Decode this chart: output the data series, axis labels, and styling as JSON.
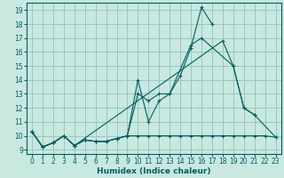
{
  "xlabel": "Humidex (Indice chaleur)",
  "xlim": [
    -0.5,
    23.5
  ],
  "ylim": [
    8.7,
    19.5
  ],
  "yticks": [
    9,
    10,
    11,
    12,
    13,
    14,
    15,
    16,
    17,
    18,
    19
  ],
  "xticks": [
    0,
    1,
    2,
    3,
    4,
    5,
    6,
    7,
    8,
    9,
    10,
    11,
    12,
    13,
    14,
    15,
    16,
    17,
    18,
    19,
    20,
    21,
    22,
    23
  ],
  "bg_color": "#c8e8e0",
  "grid_color": "#98c8c0",
  "line_color": "#006060",
  "lines": [
    {
      "x": [
        0,
        1,
        2,
        3,
        4,
        5,
        6,
        7,
        8,
        9,
        10,
        11,
        12,
        13,
        14,
        15,
        16,
        17,
        18,
        19,
        20,
        21,
        22,
        23
      ],
      "y": [
        10.3,
        9.2,
        9.5,
        10.0,
        9.3,
        9.7,
        9.6,
        9.6,
        9.8,
        10.0,
        10.0,
        10.0,
        10.0,
        10.0,
        10.0,
        10.0,
        10.0,
        10.0,
        10.0,
        10.0,
        10.0,
        10.0,
        10.0,
        9.9
      ]
    },
    {
      "x": [
        0,
        1,
        2,
        3,
        4,
        5,
        6,
        7,
        8,
        9,
        10,
        11,
        12,
        13,
        14,
        15,
        16,
        17
      ],
      "y": [
        10.3,
        9.2,
        9.5,
        10.0,
        9.3,
        9.7,
        9.6,
        9.6,
        9.8,
        10.0,
        14.0,
        11.0,
        12.5,
        13.0,
        14.3,
        16.3,
        19.2,
        18.0
      ]
    },
    {
      "x": [
        0,
        1,
        2,
        3,
        4,
        5,
        6,
        7,
        8,
        9,
        10,
        11,
        12,
        13,
        15,
        16,
        19,
        20,
        21
      ],
      "y": [
        10.3,
        9.2,
        9.5,
        10.0,
        9.3,
        9.7,
        9.6,
        9.6,
        9.8,
        10.0,
        13.0,
        12.5,
        13.0,
        13.0,
        16.5,
        17.0,
        15.0,
        12.0,
        11.5
      ]
    },
    {
      "x": [
        0,
        1,
        2,
        3,
        4,
        18,
        19,
        20,
        21,
        23
      ],
      "y": [
        10.3,
        9.2,
        9.5,
        10.0,
        9.3,
        16.8,
        15.0,
        12.0,
        11.5,
        9.9
      ]
    }
  ]
}
